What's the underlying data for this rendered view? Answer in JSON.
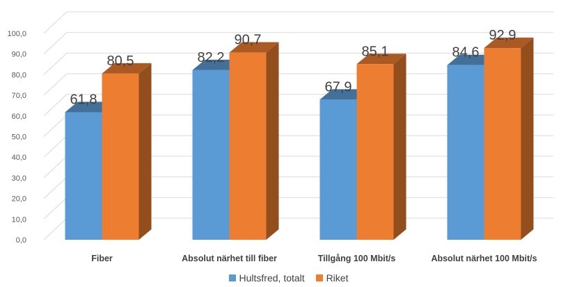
{
  "chart_data": {
    "type": "bar",
    "style": "3d-clustered-column",
    "categories": [
      "Fiber",
      "Absolut närhet till fiber",
      "Tillgång 100 Mbit/s",
      "Absolut närhet 100 Mbit/s"
    ],
    "series": [
      {
        "name": "Hultsfred, totalt",
        "values": [
          61.8,
          82.2,
          67.9,
          84.6
        ],
        "labels": [
          "61,8",
          "82,2",
          "67,9",
          "84,6"
        ],
        "color": "#5b9bd5"
      },
      {
        "name": "Riket",
        "values": [
          80.5,
          90.7,
          85.1,
          92.9
        ],
        "labels": [
          "80,5",
          "90,7",
          "85,1",
          "92,9"
        ],
        "color": "#ed7d31"
      }
    ],
    "y_ticks": [
      "0,0",
      "10,0",
      "20,0",
      "30,0",
      "40,0",
      "50,0",
      "60,0",
      "70,0",
      "80,0",
      "90,0",
      "100,0"
    ],
    "ylim": [
      0,
      100
    ],
    "grid": true,
    "legend_position": "bottom"
  }
}
